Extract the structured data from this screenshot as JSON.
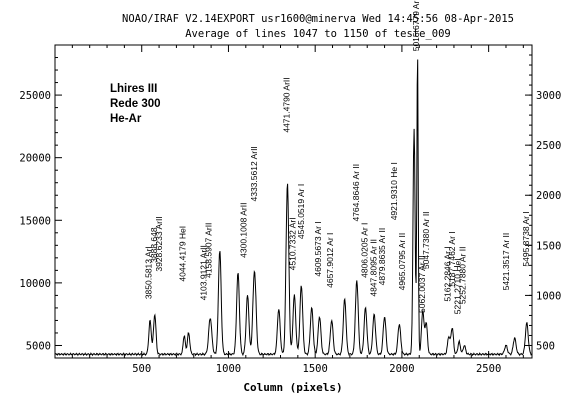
{
  "header": {
    "line1": "NOAO/IRAF V2.14EXPORT usr1600@minerva Wed 14:45:56 08-Apr-2015",
    "line2": "Average of lines 1047 to 1150 of teste_009"
  },
  "info_box": [
    "Lhires III",
    "Rede 300",
    "He-Ar"
  ],
  "chart_data": {
    "type": "line",
    "title": "",
    "xlabel": "Column (pixels)",
    "ylabel": "",
    "xlim": [
      0,
      2750
    ],
    "ylim": [
      4000,
      29000
    ],
    "xticks": [
      500,
      1000,
      1500,
      2000,
      2500
    ],
    "xtick_labels": [
      "500",
      "1000",
      "1500",
      "2000",
      "2500"
    ],
    "yticks": [
      5000,
      10000,
      15000,
      20000,
      25000
    ],
    "ytick_labels": [
      "5000",
      "10000",
      "15000",
      "20000",
      "25000"
    ],
    "right_yticks": [
      5000,
      9000,
      13000,
      17000,
      21000,
      25000
    ],
    "right_ytick_labels": [
      "500",
      "1000",
      "1500",
      "2000",
      "2500",
      "3000"
    ],
    "grid": false,
    "baseline": 4300,
    "series": [
      {
        "peaks": [
          {
            "x": 548,
            "y": 7000,
            "w": 7
          },
          {
            "x": 575,
            "y": 7500,
            "w": 7
          },
          {
            "x": 745,
            "y": 5800,
            "w": 6
          },
          {
            "x": 770,
            "y": 6000,
            "w": 7
          },
          {
            "x": 895,
            "y": 7200,
            "w": 9
          },
          {
            "x": 950,
            "y": 12600,
            "w": 8
          },
          {
            "x": 1055,
            "y": 10800,
            "w": 8
          },
          {
            "x": 1110,
            "y": 9000,
            "w": 8
          },
          {
            "x": 1150,
            "y": 11000,
            "w": 9
          },
          {
            "x": 1290,
            "y": 7900,
            "w": 8
          },
          {
            "x": 1340,
            "y": 18000,
            "w": 8
          },
          {
            "x": 1380,
            "y": 9000,
            "w": 8
          },
          {
            "x": 1420,
            "y": 9800,
            "w": 8
          },
          {
            "x": 1480,
            "y": 8000,
            "w": 8
          },
          {
            "x": 1525,
            "y": 7300,
            "w": 8
          },
          {
            "x": 1595,
            "y": 7000,
            "w": 8
          },
          {
            "x": 1670,
            "y": 8700,
            "w": 8
          },
          {
            "x": 1740,
            "y": 10200,
            "w": 8
          },
          {
            "x": 1790,
            "y": 8000,
            "w": 8
          },
          {
            "x": 1840,
            "y": 7500,
            "w": 8
          },
          {
            "x": 1900,
            "y": 7300,
            "w": 8
          },
          {
            "x": 1985,
            "y": 6700,
            "w": 8
          },
          {
            "x": 2070,
            "y": 22300,
            "w": 6
          },
          {
            "x": 2090,
            "y": 28500,
            "w": 4
          },
          {
            "x": 2120,
            "y": 7800,
            "w": 7
          },
          {
            "x": 2140,
            "y": 6800,
            "w": 7
          },
          {
            "x": 2270,
            "y": 5700,
            "w": 7
          },
          {
            "x": 2290,
            "y": 6400,
            "w": 7
          },
          {
            "x": 2330,
            "y": 5300,
            "w": 7
          },
          {
            "x": 2360,
            "y": 5000,
            "w": 7
          },
          {
            "x": 2600,
            "y": 5000,
            "w": 8
          },
          {
            "x": 2650,
            "y": 5600,
            "w": 8
          },
          {
            "x": 2720,
            "y": 6800,
            "w": 8
          }
        ]
      }
    ],
    "annotations": [
      {
        "text": "3850.5813 ArI",
        "x": 540,
        "y_top": 8700
      },
      {
        "text": "3888.648",
        "x": 572,
        "y_top": 11600
      },
      {
        "text": "3928.6233 ArII",
        "x": 600,
        "y_top": 10900
      },
      {
        "text": "4044.4179 HeI",
        "x": 735,
        "y_top": 10100
      },
      {
        "text": "4103.9121 ArII",
        "x": 855,
        "y_top": 8600
      },
      {
        "text": "4158.5907 ArII",
        "x": 885,
        "y_top": 10400
      },
      {
        "text": "4300.1008 ArII",
        "x": 1088,
        "y_top": 12000
      },
      {
        "text": "4333.5612 ArII",
        "x": 1148,
        "y_top": 16500
      },
      {
        "text": "4471.4790 ArII",
        "x": 1335,
        "y_top": 22000
      },
      {
        "text": "4510.7332 ArI",
        "x": 1370,
        "y_top": 11000
      },
      {
        "text": "4545.0519 Ar I",
        "x": 1418,
        "y_top": 13500
      },
      {
        "text": "4609.5673 Ar I",
        "x": 1515,
        "y_top": 10500
      },
      {
        "text": "4657.9012 Ar I",
        "x": 1585,
        "y_top": 9600
      },
      {
        "text": "4764.8646 Ar II",
        "x": 1735,
        "y_top": 14900
      },
      {
        "text": "4806.0205 Ar I",
        "x": 1785,
        "y_top": 10400
      },
      {
        "text": "4847.8095 Ar II",
        "x": 1835,
        "y_top": 8900
      },
      {
        "text": "4879.8635 Ar II",
        "x": 1885,
        "y_top": 9800
      },
      {
        "text": "4921.9310 He I",
        "x": 1955,
        "y_top": 15000
      },
      {
        "text": "4965.0795 Ar II",
        "x": 2000,
        "y_top": 9400
      },
      {
        "text": "5015.6779 Ar II",
        "x": 2082,
        "y_top": 28500
      },
      {
        "text": "5062.0037 Ar II",
        "x": 2115,
        "y_top": 7600
      },
      {
        "text": "5047.7380 Ar II",
        "x": 2140,
        "y_top": 11100
      },
      {
        "text": "5162.2846 Ar I",
        "x": 2262,
        "y_top": 8500
      },
      {
        "text": "5187.7462 Ar I",
        "x": 2290,
        "y_top": 9700
      },
      {
        "text": "5221.2710 HeI",
        "x": 2320,
        "y_top": 7500
      },
      {
        "text": "5252.7880 Ar II",
        "x": 2350,
        "y_top": 8300
      },
      {
        "text": "5421.3517 Ar II",
        "x": 2600,
        "y_top": 9400
      },
      {
        "text": "5495.8738 Ar I",
        "x": 2715,
        "y_top": 11300
      }
    ]
  }
}
